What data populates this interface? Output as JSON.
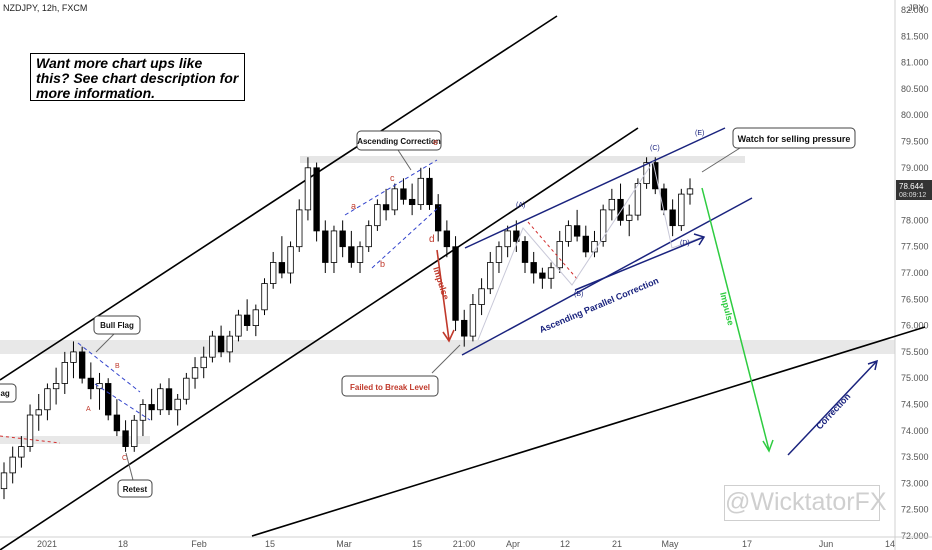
{
  "chart_data": {
    "type": "candlestick",
    "title": "NZDJPY, 12h, FXCM",
    "currency": "JPY",
    "price_label": "78.644",
    "countdown": "08:09:12",
    "y_ticks": [
      "82.000",
      "81.500",
      "81.000",
      "80.500",
      "80.000",
      "79.500",
      "79.000",
      "78.500",
      "78.000",
      "77.500",
      "77.000",
      "76.500",
      "76.000",
      "75.500",
      "75.000",
      "74.500",
      "74.000",
      "73.500",
      "73.000",
      "72.500",
      "72.000"
    ],
    "ylim": [
      72.0,
      82.0
    ],
    "x_ticks": [
      "2021",
      "18",
      "Feb",
      "15",
      "Mar",
      "15",
      "21:00",
      "Apr",
      "12",
      "21",
      "May",
      "17",
      "Jun",
      "14"
    ],
    "ohlc": [
      [
        72.9,
        73.4,
        72.7,
        73.2
      ],
      [
        73.2,
        73.7,
        73.0,
        73.5
      ],
      [
        73.5,
        73.9,
        73.3,
        73.7
      ],
      [
        73.7,
        74.5,
        73.6,
        74.3
      ],
      [
        74.3,
        74.7,
        74.0,
        74.4
      ],
      [
        74.4,
        74.9,
        74.2,
        74.8
      ],
      [
        74.8,
        75.2,
        74.5,
        74.9
      ],
      [
        74.9,
        75.5,
        74.7,
        75.3
      ],
      [
        75.3,
        75.7,
        75.0,
        75.5
      ],
      [
        75.5,
        75.6,
        74.9,
        75.0
      ],
      [
        75.0,
        75.3,
        74.6,
        74.8
      ],
      [
        74.8,
        75.1,
        74.4,
        74.9
      ],
      [
        74.9,
        75.0,
        74.2,
        74.3
      ],
      [
        74.3,
        74.6,
        73.9,
        74.0
      ],
      [
        74.0,
        74.2,
        73.6,
        73.7
      ],
      [
        73.7,
        74.3,
        73.6,
        74.2
      ],
      [
        74.2,
        74.6,
        73.9,
        74.5
      ],
      [
        74.5,
        74.8,
        74.2,
        74.4
      ],
      [
        74.4,
        74.9,
        74.3,
        74.8
      ],
      [
        74.8,
        75.0,
        74.3,
        74.4
      ],
      [
        74.4,
        74.7,
        74.1,
        74.6
      ],
      [
        74.6,
        75.1,
        74.5,
        75.0
      ],
      [
        75.0,
        75.4,
        74.8,
        75.2
      ],
      [
        75.2,
        75.6,
        75.0,
        75.4
      ],
      [
        75.4,
        75.9,
        75.3,
        75.8
      ],
      [
        75.8,
        76.0,
        75.4,
        75.5
      ],
      [
        75.5,
        75.9,
        75.3,
        75.8
      ],
      [
        75.8,
        76.3,
        75.7,
        76.2
      ],
      [
        76.2,
        76.5,
        75.9,
        76.0
      ],
      [
        76.0,
        76.4,
        75.8,
        76.3
      ],
      [
        76.3,
        76.9,
        76.2,
        76.8
      ],
      [
        76.8,
        77.4,
        76.7,
        77.2
      ],
      [
        77.2,
        77.7,
        76.9,
        77.0
      ],
      [
        77.0,
        77.6,
        76.8,
        77.5
      ],
      [
        77.5,
        78.4,
        77.4,
        78.2
      ],
      [
        78.2,
        79.2,
        78.0,
        79.0
      ],
      [
        79.0,
        79.1,
        77.6,
        77.8
      ],
      [
        77.8,
        78.0,
        77.0,
        77.2
      ],
      [
        77.2,
        77.9,
        77.0,
        77.8
      ],
      [
        77.8,
        78.0,
        77.3,
        77.5
      ],
      [
        77.5,
        77.8,
        77.1,
        77.2
      ],
      [
        77.2,
        77.6,
        77.0,
        77.5
      ],
      [
        77.5,
        78.0,
        77.4,
        77.9
      ],
      [
        77.9,
        78.4,
        77.8,
        78.3
      ],
      [
        78.3,
        78.6,
        78.0,
        78.2
      ],
      [
        78.2,
        78.7,
        78.1,
        78.6
      ],
      [
        78.6,
        78.8,
        78.3,
        78.4
      ],
      [
        78.4,
        78.7,
        78.1,
        78.3
      ],
      [
        78.3,
        79.0,
        78.2,
        78.8
      ],
      [
        78.8,
        79.0,
        78.2,
        78.3
      ],
      [
        78.3,
        78.5,
        77.6,
        77.8
      ],
      [
        77.8,
        78.0,
        77.3,
        77.5
      ],
      [
        77.5,
        77.7,
        75.9,
        76.1
      ],
      [
        76.1,
        76.3,
        75.6,
        75.8
      ],
      [
        75.8,
        76.6,
        75.7,
        76.4
      ],
      [
        76.4,
        76.9,
        76.2,
        76.7
      ],
      [
        76.7,
        77.4,
        76.6,
        77.2
      ],
      [
        77.2,
        77.6,
        77.0,
        77.5
      ],
      [
        77.5,
        77.9,
        77.3,
        77.8
      ],
      [
        77.8,
        78.0,
        77.4,
        77.6
      ],
      [
        77.6,
        77.7,
        77.0,
        77.2
      ],
      [
        77.2,
        77.4,
        76.8,
        77.0
      ],
      [
        77.0,
        77.1,
        76.7,
        76.9
      ],
      [
        76.9,
        77.2,
        76.7,
        77.1
      ],
      [
        77.1,
        77.8,
        77.0,
        77.6
      ],
      [
        77.6,
        78.0,
        77.5,
        77.9
      ],
      [
        77.9,
        78.2,
        77.6,
        77.7
      ],
      [
        77.7,
        77.9,
        77.3,
        77.4
      ],
      [
        77.4,
        77.8,
        77.3,
        77.6
      ],
      [
        77.6,
        78.3,
        77.5,
        78.2
      ],
      [
        78.2,
        78.6,
        78.0,
        78.4
      ],
      [
        78.4,
        78.7,
        77.9,
        78.0
      ],
      [
        78.0,
        78.3,
        77.7,
        78.1
      ],
      [
        78.1,
        78.8,
        78.0,
        78.7
      ],
      [
        78.7,
        79.2,
        78.6,
        79.1
      ],
      [
        79.1,
        79.2,
        78.5,
        78.6
      ],
      [
        78.6,
        78.7,
        78.1,
        78.2
      ],
      [
        78.2,
        78.4,
        77.7,
        77.9
      ],
      [
        77.9,
        78.6,
        77.8,
        78.5
      ],
      [
        78.5,
        78.8,
        78.3,
        78.6
      ]
    ]
  },
  "annotations": {
    "note": "Want more chart ups like this? See chart description for more information.",
    "watch": "Watch for selling pressure",
    "asc_correction": "Ascending Correction",
    "bull_flag": "Bull Flag",
    "flag": "lag",
    "retest": "Retest",
    "failed": "Failed to Break Level",
    "impulse_red": "Impulse",
    "impulse_green": "Impulse",
    "correction": "Correction",
    "apc": "Ascending Parallel Correction",
    "wave_A": "(A)",
    "wave_B": "(B)",
    "wave_C": "(C)",
    "wave_D": "(D)",
    "wave_E": "(E)",
    "a": "a",
    "b": "b",
    "c": "c",
    "d": "d",
    "e": "e",
    "A": "A",
    "B": "B",
    "C": "C",
    "watermark": "@WicktatorFX"
  },
  "colors": {
    "up": "#ffffff",
    "down": "#000000",
    "navy": "#1a237e",
    "red": "#d32f2f",
    "green": "#2ecc40"
  }
}
